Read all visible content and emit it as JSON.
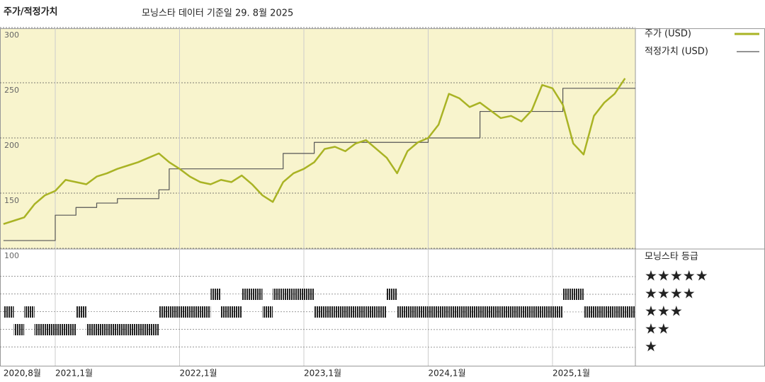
{
  "chart_data": {
    "type": "line",
    "title": "주가/적정가치",
    "subtitle": "모닝스타 데이터 기준일 29. 8월 2025",
    "x": [
      "2020-08",
      "2020-09",
      "2020-10",
      "2020-11",
      "2020-12",
      "2021-01",
      "2021-02",
      "2021-03",
      "2021-04",
      "2021-05",
      "2021-06",
      "2021-07",
      "2021-08",
      "2021-09",
      "2021-10",
      "2021-11",
      "2021-12",
      "2022-01",
      "2022-02",
      "2022-03",
      "2022-04",
      "2022-05",
      "2022-06",
      "2022-07",
      "2022-08",
      "2022-09",
      "2022-10",
      "2022-11",
      "2022-12",
      "2023-01",
      "2023-02",
      "2023-03",
      "2023-04",
      "2023-05",
      "2023-06",
      "2023-07",
      "2023-08",
      "2023-09",
      "2023-10",
      "2023-11",
      "2023-12",
      "2024-01",
      "2024-02",
      "2024-03",
      "2024-04",
      "2024-05",
      "2024-06",
      "2024-07",
      "2024-08",
      "2024-09",
      "2024-10",
      "2024-11",
      "2024-12",
      "2025-01",
      "2025-02",
      "2025-03",
      "2025-04",
      "2025-05",
      "2025-06",
      "2025-07",
      "2025-08"
    ],
    "series": [
      {
        "name": "주가 (USD)",
        "color": "#a9b324",
        "step": false,
        "values": [
          122,
          125,
          128,
          140,
          148,
          152,
          162,
          160,
          158,
          165,
          168,
          172,
          175,
          178,
          182,
          186,
          178,
          172,
          165,
          160,
          158,
          162,
          160,
          166,
          158,
          148,
          142,
          160,
          168,
          172,
          178,
          190,
          192,
          188,
          195,
          198,
          190,
          182,
          168,
          188,
          196,
          200,
          212,
          240,
          236,
          228,
          232,
          225,
          218,
          220,
          215,
          225,
          248,
          245,
          230,
          195,
          185,
          220,
          232,
          240,
          254
        ]
      },
      {
        "name": "적정가치 (USD)",
        "color": "#555555",
        "step": true,
        "values": [
          107,
          107,
          107,
          107,
          107,
          130,
          130,
          137,
          137,
          141,
          141,
          145,
          145,
          145,
          145,
          153,
          172,
          172,
          172,
          172,
          172,
          172,
          172,
          172,
          172,
          172,
          172,
          186,
          186,
          186,
          196,
          196,
          196,
          196,
          196,
          196,
          196,
          196,
          196,
          196,
          196,
          200,
          200,
          200,
          200,
          200,
          224,
          224,
          224,
          224,
          224,
          224,
          224,
          224,
          245,
          245,
          245,
          245,
          245,
          245,
          245
        ]
      }
    ],
    "ylim": [
      100,
      300
    ],
    "yticks": [
      100,
      150,
      200,
      250,
      300
    ],
    "xticks": [
      {
        "value": "2020-08",
        "label": "2020,8월"
      },
      {
        "value": "2021-01",
        "label": "2021,1월"
      },
      {
        "value": "2022-01",
        "label": "2022,1월"
      },
      {
        "value": "2023-01",
        "label": "2023,1월"
      },
      {
        "value": "2024-01",
        "label": "2024,1월"
      },
      {
        "value": "2025-01",
        "label": "2025,1월"
      }
    ],
    "grid": true,
    "rating_title": "모닝스타 등급",
    "rating_labels": [
      "★★★★★",
      "★★★★",
      "★★★",
      "★★",
      "★"
    ],
    "ratings": [
      3,
      2,
      3,
      2,
      2,
      2,
      2,
      3,
      2,
      2,
      2,
      2,
      2,
      2,
      2,
      3,
      3,
      3,
      3,
      3,
      4,
      3,
      3,
      4,
      4,
      3,
      4,
      4,
      4,
      4,
      3,
      3,
      3,
      3,
      3,
      3,
      3,
      4,
      3,
      3,
      3,
      3,
      3,
      3,
      3,
      3,
      3,
      3,
      3,
      3,
      3,
      3,
      3,
      3,
      4,
      4,
      3,
      3,
      3,
      3,
      3
    ]
  }
}
